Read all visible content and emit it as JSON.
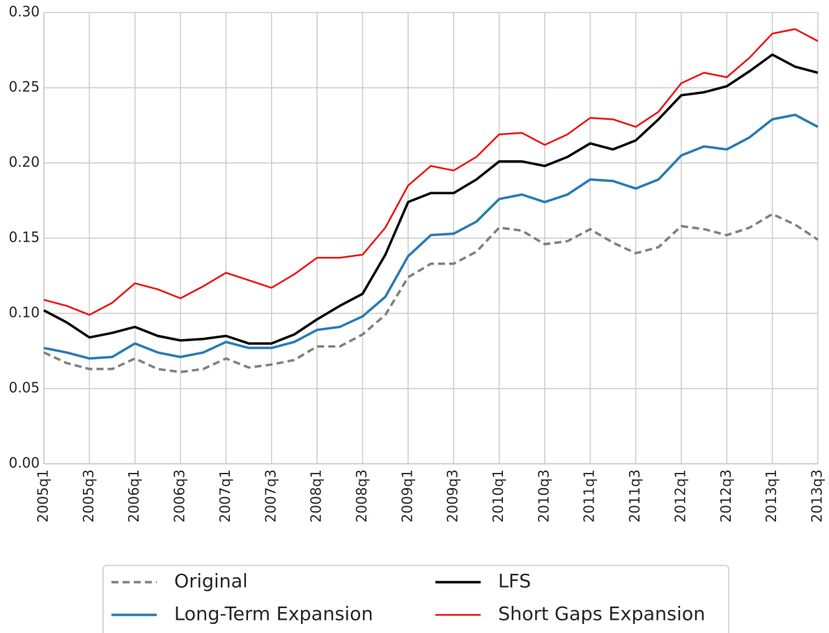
{
  "chart_data": {
    "type": "line",
    "categories": [
      "2005q1",
      null,
      "2005q3",
      null,
      "2006q1",
      null,
      "2006q3",
      null,
      "2007q1",
      null,
      "2007q3",
      null,
      "2008q1",
      null,
      "2008q3",
      null,
      "2009q1",
      null,
      "2009q3",
      null,
      "2010q1",
      null,
      "2010q3",
      null,
      "2011q1",
      null,
      "2011q3",
      null,
      "2012q1",
      null,
      "2012q3",
      null,
      "2013q1",
      null,
      "2013q3"
    ],
    "series": [
      {
        "name": "Original",
        "color": "#808080",
        "linestyle": "dashed",
        "values": [
          0.074,
          0.067,
          0.063,
          0.063,
          0.07,
          0.063,
          0.061,
          0.063,
          0.07,
          0.064,
          0.066,
          0.069,
          0.078,
          0.078,
          0.086,
          0.099,
          0.124,
          0.133,
          0.133,
          0.141,
          0.157,
          0.155,
          0.146,
          0.148,
          0.156,
          0.147,
          0.14,
          0.144,
          0.158,
          0.156,
          0.152,
          0.157,
          0.166,
          0.159,
          0.149
        ]
      },
      {
        "name": "Long-Term Expansion",
        "color": "#2a7ab5",
        "linestyle": "solid",
        "values": [
          0.077,
          0.074,
          0.07,
          0.071,
          0.08,
          0.074,
          0.071,
          0.074,
          0.081,
          0.077,
          0.077,
          0.081,
          0.089,
          0.091,
          0.098,
          0.111,
          0.138,
          0.152,
          0.153,
          0.161,
          0.176,
          0.179,
          0.174,
          0.179,
          0.189,
          0.188,
          0.183,
          0.189,
          0.205,
          0.211,
          0.209,
          0.217,
          0.229,
          0.232,
          0.224
        ]
      },
      {
        "name": "LFS",
        "color": "#000000",
        "linestyle": "solid",
        "values": [
          0.102,
          0.094,
          0.084,
          0.087,
          0.091,
          0.085,
          0.082,
          0.083,
          0.085,
          0.08,
          0.08,
          0.086,
          0.096,
          0.105,
          0.113,
          0.139,
          0.174,
          0.18,
          0.18,
          0.189,
          0.201,
          0.201,
          0.198,
          0.204,
          0.213,
          0.209,
          0.215,
          0.229,
          0.245,
          0.247,
          0.251,
          0.261,
          0.272,
          0.264,
          0.26
        ]
      },
      {
        "name": "Short Gaps Expansion",
        "color": "#f01010",
        "linestyle": "solid",
        "values": [
          0.109,
          0.105,
          0.099,
          0.107,
          0.12,
          0.116,
          0.11,
          0.118,
          0.127,
          0.122,
          0.117,
          0.126,
          0.137,
          0.137,
          0.139,
          0.157,
          0.185,
          0.198,
          0.195,
          0.204,
          0.219,
          0.22,
          0.212,
          0.219,
          0.23,
          0.229,
          0.224,
          0.234,
          0.253,
          0.26,
          0.257,
          0.27,
          0.286,
          0.289,
          0.281
        ]
      }
    ],
    "ylim": [
      0,
      0.3
    ],
    "yticks": [
      {
        "value": 0,
        "label": "0.00"
      },
      {
        "value": 0.05,
        "label": "0.05"
      },
      {
        "value": 0.1,
        "label": "0.10"
      },
      {
        "value": 0.15,
        "label": "0.15"
      },
      {
        "value": 0.2,
        "label": "0.20"
      },
      {
        "value": 0.25,
        "label": "0.25"
      },
      {
        "value": 0.3,
        "label": "0.30"
      }
    ],
    "grid": true,
    "legend": "bottom"
  }
}
